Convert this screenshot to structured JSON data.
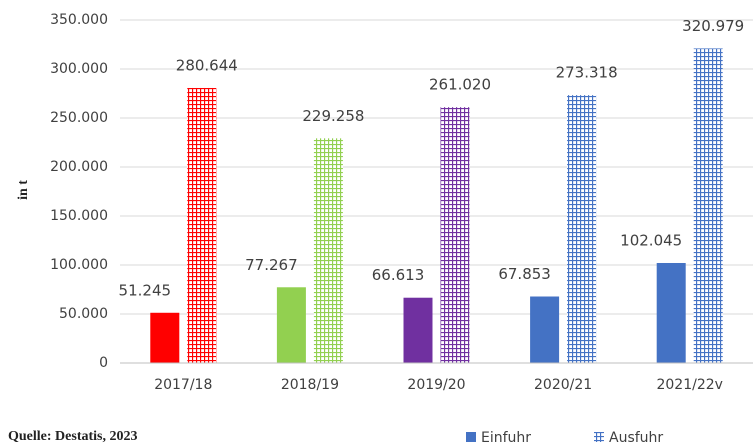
{
  "chart_data": {
    "type": "bar",
    "categories": [
      "2017/18",
      "2018/19",
      "2019/20",
      "2020/21",
      "2021/22v"
    ],
    "series": [
      {
        "name": "Einfuhr",
        "color": "#4472c4",
        "colors": [
          "#ff0000",
          "#92d050",
          "#7030a0",
          "#4472c4",
          "#4472c4"
        ],
        "hatched": false,
        "values": [
          51245,
          77267,
          66613,
          67853,
          102045
        ],
        "value_labels": [
          "51.245",
          "77.267",
          "66.613",
          "67.853",
          "102.045"
        ]
      },
      {
        "name": "Ausfuhr",
        "color": "#4472c4",
        "colors": [
          "#ff0000",
          "#92d050",
          "#7030a0",
          "#4472c4",
          "#4472c4"
        ],
        "hatched": true,
        "values": [
          280644,
          229258,
          261020,
          273318,
          320979
        ],
        "value_labels": [
          "280.644",
          "229.258",
          "261.020",
          "273.318",
          "320.979"
        ]
      }
    ],
    "ylabel": "in t",
    "source": "Quelle: Destatis, 2023",
    "ylim": [
      0,
      350000
    ],
    "yticks": [
      0,
      {
        "value": 50000,
        "label": "50.000"
      },
      {
        "value": 100000,
        "label": "100.000"
      },
      {
        "value": 150000,
        "label": "150.000"
      },
      {
        "value": 200000,
        "label": "200.000"
      },
      {
        "value": 250000,
        "label": "250.000"
      },
      {
        "value": 300000,
        "label": "300.000"
      },
      {
        "value": 350000,
        "label": "350.000"
      }
    ],
    "grid": true
  }
}
